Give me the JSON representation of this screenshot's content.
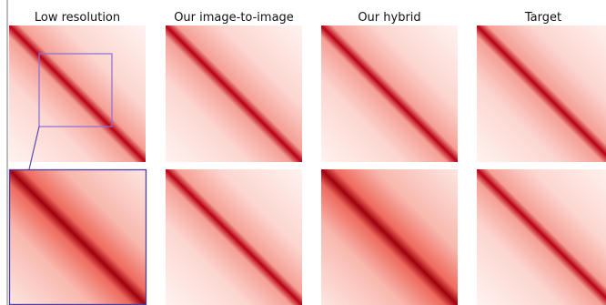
{
  "figure": {
    "columns": [
      "Low resolution",
      "Our image-to-image",
      "Our hybrid",
      "Target"
    ]
  }
}
